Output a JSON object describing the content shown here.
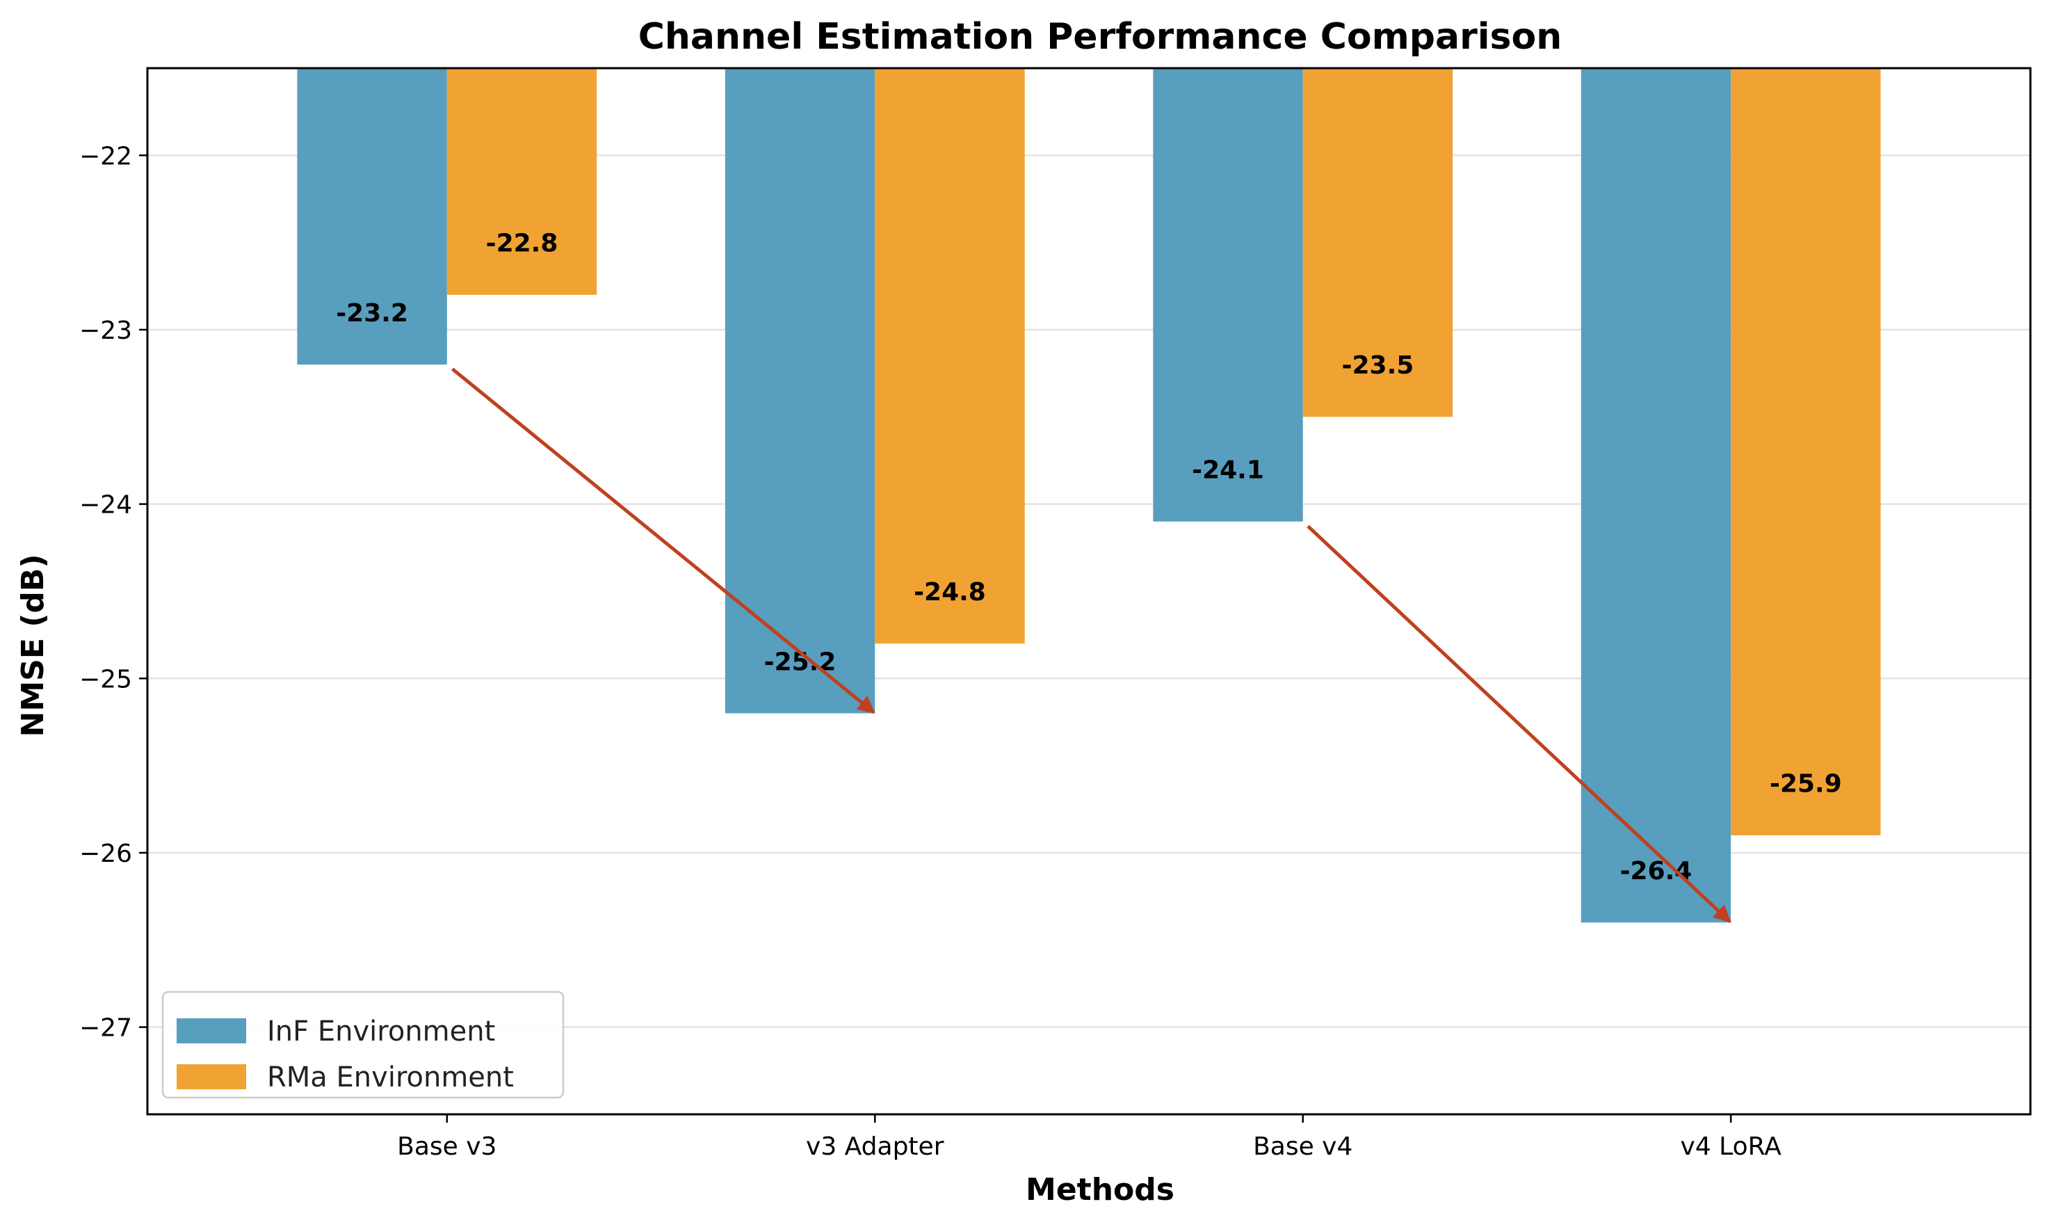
{
  "chart_data": {
    "type": "bar",
    "title": "Channel Estimation Performance Comparison",
    "xlabel": "Methods",
    "ylabel": "NMSE (dB)",
    "categories": [
      "Base v3",
      "v3 Adapter",
      "Base v4",
      "v4 LoRA"
    ],
    "series": [
      {
        "name": "InF Environment",
        "color": "#589ebe",
        "values": [
          -23.2,
          -25.2,
          -24.1,
          -26.4
        ]
      },
      {
        "name": "RMa Environment",
        "color": "#f0a332",
        "values": [
          -22.8,
          -24.8,
          -23.5,
          -25.9
        ]
      }
    ],
    "data_labels": {
      "InF Environment": [
        "-23.2",
        "-25.2",
        "-24.1",
        "-26.4"
      ],
      "RMa Environment": [
        "-22.8",
        "-24.8",
        "-23.5",
        "-25.9"
      ]
    },
    "ylim": [
      -27.5,
      -21.5
    ],
    "yticks": [
      -22,
      -23,
      -24,
      -25,
      -26,
      -27
    ],
    "ytick_labels": [
      "−22",
      "−23",
      "−24",
      "−25",
      "−26",
      "−27"
    ],
    "grid": "horizontal",
    "legend_position": "lower-left",
    "annotations": [
      {
        "type": "arrow",
        "from": {
          "category": "Base v3",
          "value": -23.2
        },
        "to": {
          "category": "v3 Adapter",
          "value": -25.2
        },
        "color": "#c0401f"
      },
      {
        "type": "arrow",
        "from": {
          "category": "Base v4",
          "value": -24.1
        },
        "to": {
          "category": "v4 LoRA",
          "value": -26.4
        },
        "color": "#c0401f"
      }
    ]
  }
}
